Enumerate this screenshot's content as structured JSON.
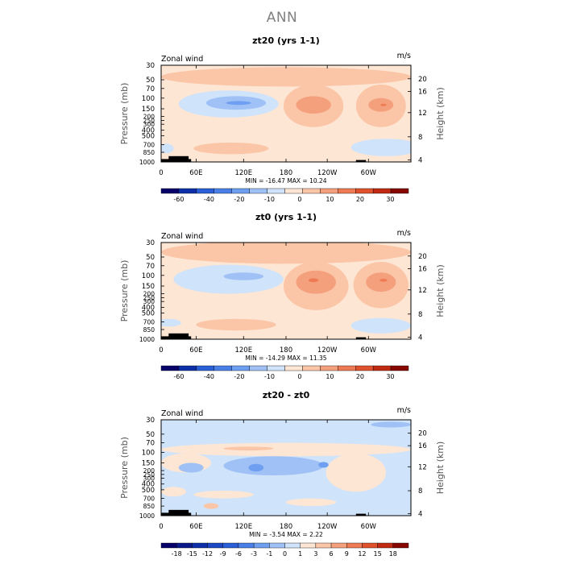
{
  "page_title": "ANN",
  "colors": {
    "bg": "#ffffff",
    "frame": "#000000",
    "land": "#000000"
  },
  "chart_data": [
    {
      "type": "heatmap",
      "title": "zt20 (yrs 1-1)",
      "variable_label": "Zonal wind",
      "units_label": "m/s",
      "ylabel": "Pressure (mb)",
      "ylabel_right": "Height (km)",
      "x_tick_labels": [
        "0",
        "60E",
        "120E",
        "180",
        "120W",
        "60W"
      ],
      "y_tick_labels": [
        "30",
        "50",
        "70",
        "100",
        "150",
        "200",
        "250",
        "300",
        "400",
        "500",
        "700",
        "850",
        "1000"
      ],
      "y_right_tick_labels": [
        "20",
        "16",
        "12",
        "8",
        "4"
      ],
      "stats_text": "MIN = -16.47   MAX = 10.24",
      "colorbar_ticks": [
        "-60",
        "-40",
        "-20",
        "-10",
        "0",
        "10",
        "20",
        "30"
      ],
      "colorbar_colors": [
        "#08006a",
        "#0d2fa8",
        "#2a5fd8",
        "#4a7fe8",
        "#6f9ff0",
        "#9fc1f6",
        "#cfe3fa",
        "#fee6d4",
        "#fbc6a8",
        "#f5a07d",
        "#ee7b54",
        "#e0522d",
        "#c02a12",
        "#860600"
      ],
      "bg_color": "#fee6d4",
      "features": [
        {
          "c": "#fbc6a8",
          "cx": 0.5,
          "cy": 0.12,
          "rx": 0.5,
          "ry": 0.1
        },
        {
          "c": "#cfe3fa",
          "cx": 0.27,
          "cy": 0.4,
          "rx": 0.2,
          "ry": 0.14
        },
        {
          "c": "#9fc1f6",
          "cx": 0.3,
          "cy": 0.39,
          "rx": 0.12,
          "ry": 0.07
        },
        {
          "c": "#6f9ff0",
          "cx": 0.31,
          "cy": 0.39,
          "rx": 0.05,
          "ry": 0.02
        },
        {
          "c": "#fbc6a8",
          "cx": 0.61,
          "cy": 0.42,
          "rx": 0.12,
          "ry": 0.22
        },
        {
          "c": "#f5a07d",
          "cx": 0.61,
          "cy": 0.41,
          "rx": 0.07,
          "ry": 0.09
        },
        {
          "c": "#fbc6a8",
          "cx": 0.88,
          "cy": 0.42,
          "rx": 0.1,
          "ry": 0.22
        },
        {
          "c": "#f5a07d",
          "cx": 0.88,
          "cy": 0.41,
          "rx": 0.05,
          "ry": 0.07
        },
        {
          "c": "#ee7b54",
          "cx": 0.89,
          "cy": 0.41,
          "rx": 0.012,
          "ry": 0.012
        },
        {
          "c": "#fbc6a8",
          "cx": 0.28,
          "cy": 0.86,
          "rx": 0.15,
          "ry": 0.06
        },
        {
          "c": "#cfe3fa",
          "cx": 0.02,
          "cy": 0.86,
          "rx": 0.03,
          "ry": 0.05
        },
        {
          "c": "#cfe3fa",
          "cx": 0.9,
          "cy": 0.85,
          "rx": 0.14,
          "ry": 0.09
        }
      ],
      "land_segments": [
        {
          "from": 0.0,
          "to": 0.12,
          "h": 0.03
        },
        {
          "from": 0.03,
          "to": 0.11,
          "h": 0.06
        },
        {
          "from": 0.78,
          "to": 0.82,
          "h": 0.02
        }
      ]
    },
    {
      "type": "heatmap",
      "title": "zt0 (yrs 1-1)",
      "variable_label": "Zonal wind",
      "units_label": "m/s",
      "ylabel": "Pressure (mb)",
      "ylabel_right": "Height (km)",
      "x_tick_labels": [
        "0",
        "60E",
        "120E",
        "180",
        "120W",
        "60W"
      ],
      "y_tick_labels": [
        "30",
        "50",
        "70",
        "100",
        "150",
        "200",
        "250",
        "300",
        "400",
        "500",
        "700",
        "850",
        "1000"
      ],
      "y_right_tick_labels": [
        "20",
        "16",
        "12",
        "8",
        "4"
      ],
      "stats_text": "MIN = -14.29   MAX =  11.35",
      "colorbar_ticks": [
        "-60",
        "-40",
        "-20",
        "-10",
        "0",
        "10",
        "20",
        "30"
      ],
      "colorbar_colors": [
        "#08006a",
        "#0d2fa8",
        "#2a5fd8",
        "#4a7fe8",
        "#6f9ff0",
        "#9fc1f6",
        "#cfe3fa",
        "#fee6d4",
        "#fbc6a8",
        "#f5a07d",
        "#ee7b54",
        "#e0522d",
        "#c02a12",
        "#860600"
      ],
      "bg_color": "#fee6d4",
      "features": [
        {
          "c": "#fbc6a8",
          "cx": 0.5,
          "cy": 0.1,
          "rx": 0.5,
          "ry": 0.12
        },
        {
          "c": "#cfe3fa",
          "cx": 0.27,
          "cy": 0.38,
          "rx": 0.22,
          "ry": 0.15
        },
        {
          "c": "#9fc1f6",
          "cx": 0.33,
          "cy": 0.35,
          "rx": 0.08,
          "ry": 0.04
        },
        {
          "c": "#fbc6a8",
          "cx": 0.62,
          "cy": 0.45,
          "rx": 0.13,
          "ry": 0.25
        },
        {
          "c": "#f5a07d",
          "cx": 0.62,
          "cy": 0.41,
          "rx": 0.08,
          "ry": 0.12
        },
        {
          "c": "#ee7b54",
          "cx": 0.61,
          "cy": 0.39,
          "rx": 0.02,
          "ry": 0.02
        },
        {
          "c": "#fbc6a8",
          "cx": 0.88,
          "cy": 0.44,
          "rx": 0.11,
          "ry": 0.24
        },
        {
          "c": "#f5a07d",
          "cx": 0.88,
          "cy": 0.41,
          "rx": 0.06,
          "ry": 0.1
        },
        {
          "c": "#ee7b54",
          "cx": 0.89,
          "cy": 0.39,
          "rx": 0.015,
          "ry": 0.015
        },
        {
          "c": "#fbc6a8",
          "cx": 0.3,
          "cy": 0.85,
          "rx": 0.16,
          "ry": 0.06
        },
        {
          "c": "#cfe3fa",
          "cx": 0.03,
          "cy": 0.83,
          "rx": 0.05,
          "ry": 0.04
        },
        {
          "c": "#cfe3fa",
          "cx": 0.88,
          "cy": 0.86,
          "rx": 0.12,
          "ry": 0.08
        }
      ],
      "land_segments": [
        {
          "from": 0.0,
          "to": 0.12,
          "h": 0.03
        },
        {
          "from": 0.03,
          "to": 0.11,
          "h": 0.06
        },
        {
          "from": 0.78,
          "to": 0.82,
          "h": 0.02
        }
      ]
    },
    {
      "type": "heatmap",
      "title": "zt20 - zt0",
      "variable_label": "Zonal wind",
      "units_label": "m/s",
      "ylabel": "Pressure (mb)",
      "ylabel_right": "Height (km)",
      "x_tick_labels": [
        "0",
        "60E",
        "120E",
        "180",
        "120W",
        "60W"
      ],
      "y_tick_labels": [
        "30",
        "50",
        "70",
        "100",
        "150",
        "200",
        "250",
        "300",
        "400",
        "500",
        "700",
        "850",
        "1000"
      ],
      "y_right_tick_labels": [
        "20",
        "16",
        "12",
        "8",
        "4"
      ],
      "stats_text": "MIN = -3.54   MAX =   2.22",
      "colorbar_ticks": [
        "-18",
        "-15",
        "-12",
        "-9",
        "-6",
        "-3",
        "-1",
        "0",
        "1",
        "3",
        "6",
        "9",
        "12",
        "15",
        "18"
      ],
      "colorbar_colors": [
        "#08006a",
        "#0a1a8a",
        "#0d2fa8",
        "#1c48c4",
        "#2a5fd8",
        "#4a7fe8",
        "#6f9ff0",
        "#9fc1f6",
        "#cfe3fa",
        "#fee6d4",
        "#fbc6a8",
        "#f5a07d",
        "#ee7b54",
        "#e0522d",
        "#c02a12",
        "#860600"
      ],
      "bg_color": "#cfe3fa",
      "features": [
        {
          "c": "#fee6d4",
          "cx": 0.5,
          "cy": 0.31,
          "rx": 0.5,
          "ry": 0.07
        },
        {
          "c": "#fbc6a8",
          "cx": 0.35,
          "cy": 0.3,
          "rx": 0.1,
          "ry": 0.02
        },
        {
          "c": "#fee6d4",
          "cx": 0.1,
          "cy": 0.45,
          "rx": 0.1,
          "ry": 0.1
        },
        {
          "c": "#fee6d4",
          "cx": 0.78,
          "cy": 0.55,
          "rx": 0.12,
          "ry": 0.2
        },
        {
          "c": "#9fc1f6",
          "cx": 0.45,
          "cy": 0.48,
          "rx": 0.2,
          "ry": 0.1
        },
        {
          "c": "#9fc1f6",
          "cx": 0.12,
          "cy": 0.5,
          "rx": 0.05,
          "ry": 0.05
        },
        {
          "c": "#6f9ff0",
          "cx": 0.38,
          "cy": 0.5,
          "rx": 0.03,
          "ry": 0.04
        },
        {
          "c": "#6f9ff0",
          "cx": 0.65,
          "cy": 0.47,
          "rx": 0.02,
          "ry": 0.03
        },
        {
          "c": "#fee6d4",
          "cx": 0.25,
          "cy": 0.78,
          "rx": 0.12,
          "ry": 0.04
        },
        {
          "c": "#fee6d4",
          "cx": 0.05,
          "cy": 0.75,
          "rx": 0.05,
          "ry": 0.05
        },
        {
          "c": "#fee6d4",
          "cx": 0.6,
          "cy": 0.86,
          "rx": 0.1,
          "ry": 0.04
        },
        {
          "c": "#9fc1f6",
          "cx": 0.92,
          "cy": 0.05,
          "rx": 0.08,
          "ry": 0.03
        },
        {
          "c": "#fbc6a8",
          "cx": 0.2,
          "cy": 0.9,
          "rx": 0.03,
          "ry": 0.03
        }
      ],
      "land_segments": [
        {
          "from": 0.0,
          "to": 0.12,
          "h": 0.03
        },
        {
          "from": 0.03,
          "to": 0.11,
          "h": 0.06
        },
        {
          "from": 0.78,
          "to": 0.82,
          "h": 0.02
        }
      ]
    }
  ]
}
